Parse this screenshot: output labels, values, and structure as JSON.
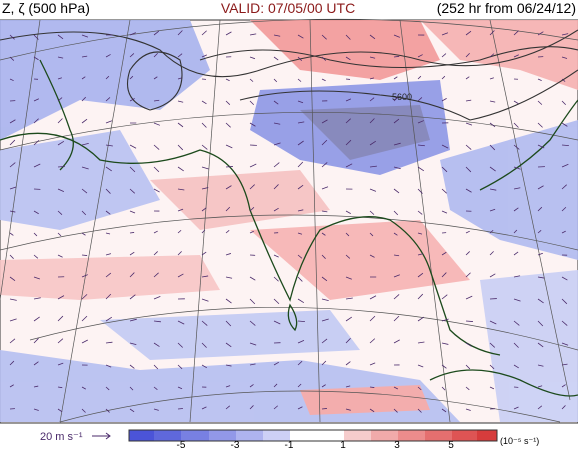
{
  "header": {
    "left": "Z, ζ (500 hPa)",
    "center": "VALID: 07/05/00 UTC",
    "right": "(252 hr from 06/24/12)"
  },
  "map": {
    "contour_label": "5600"
  },
  "wind_reference": "20 m s⁻¹",
  "colorbar": {
    "ticks": [
      "-5",
      "-3",
      "-1",
      "1",
      "3",
      "5"
    ],
    "unit": "(10⁻⁵ s⁻¹)"
  }
}
